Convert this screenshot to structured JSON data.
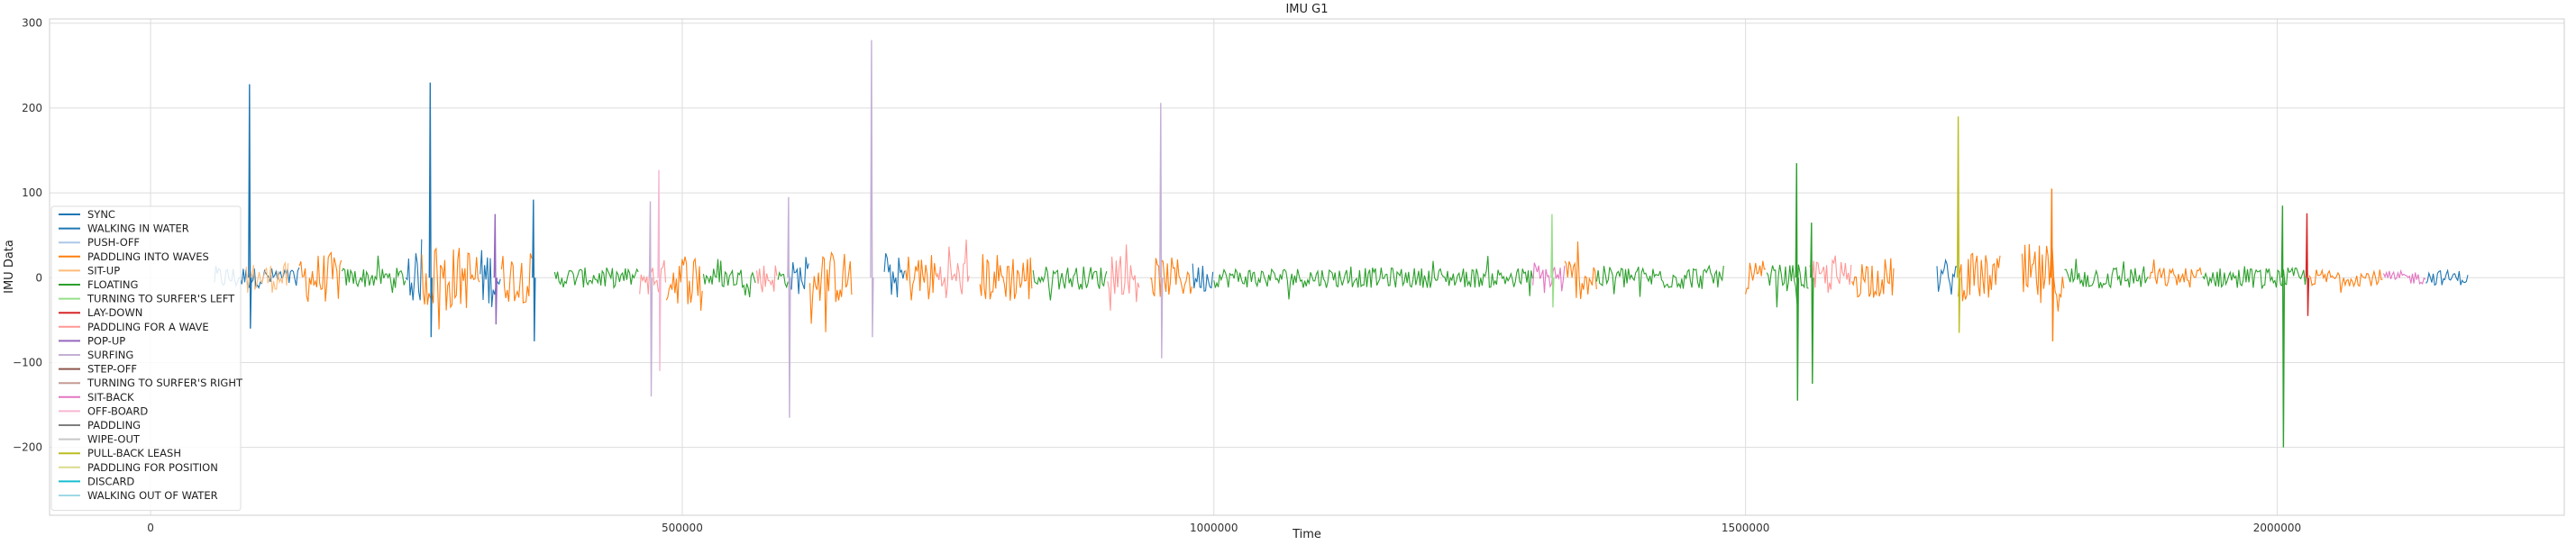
{
  "chart_data": {
    "type": "line",
    "title": "IMU G1",
    "xlabel": "Time",
    "ylabel": "IMU Data",
    "xlim": [
      -95000,
      2270000
    ],
    "ylim": [
      -280,
      305
    ],
    "xticks": [
      0,
      500000,
      1000000,
      1500000,
      2000000
    ],
    "xtick_labels": [
      "0",
      "500000",
      "1000000",
      "1500000",
      "2000000"
    ],
    "yticks": [
      -200,
      -100,
      0,
      100,
      200,
      300
    ],
    "ytick_labels": [
      "−200",
      "−100",
      "0",
      "100",
      "200",
      "300"
    ],
    "grid": true,
    "legend_position": "lower-left",
    "series": [
      {
        "name": "SYNC",
        "color": "#1f77b4"
      },
      {
        "name": "WALKING IN WATER",
        "color": "#1f77b4"
      },
      {
        "name": "PUSH-OFF",
        "color": "#aec7e8"
      },
      {
        "name": "PADDLING INTO WAVES",
        "color": "#ff7f0e"
      },
      {
        "name": "SIT-UP",
        "color": "#ffbb78"
      },
      {
        "name": "FLOATING",
        "color": "#2ca02c"
      },
      {
        "name": "TURNING TO SURFER'S LEFT",
        "color": "#98df8a"
      },
      {
        "name": "LAY-DOWN",
        "color": "#d62728"
      },
      {
        "name": "PADDLING FOR A WAVE",
        "color": "#ff9896"
      },
      {
        "name": "POP-UP",
        "color": "#9467bd"
      },
      {
        "name": "SURFING",
        "color": "#c5b0d5"
      },
      {
        "name": "STEP-OFF",
        "color": "#8c564b"
      },
      {
        "name": "TURNING TO SURFER'S RIGHT",
        "color": "#c49c94"
      },
      {
        "name": "SIT-BACK",
        "color": "#e377c2"
      },
      {
        "name": "OFF-BOARD",
        "color": "#f7b6d2"
      },
      {
        "name": "PADDLING",
        "color": "#7f7f7f"
      },
      {
        "name": "WIPE-OUT",
        "color": "#c7c7c7"
      },
      {
        "name": "PULL-BACK LEASH",
        "color": "#bcbd22"
      },
      {
        "name": "PADDLING FOR POSITION",
        "color": "#dbdb8d"
      },
      {
        "name": "DISCARD",
        "color": "#17becf"
      },
      {
        "name": "WALKING OUT OF WATER",
        "color": "#9edae5"
      }
    ],
    "segments": [
      {
        "series": 0,
        "x": [
          60000,
          95000
        ],
        "amp": 14
      },
      {
        "series": 1,
        "x": [
          95000,
          140000
        ],
        "amp": 12
      },
      {
        "series": 4,
        "x": [
          90000,
          130000
        ],
        "amp": 18
      },
      {
        "series": 3,
        "x": [
          140000,
          180000
        ],
        "amp": 30
      },
      {
        "series": 5,
        "x": [
          180000,
          240000
        ],
        "amp": 12
      },
      {
        "series": 1,
        "x": [
          240000,
          255000
        ],
        "amp": 30
      },
      {
        "series": 3,
        "x": [
          255000,
          310000
        ],
        "amp": 38
      },
      {
        "series": 1,
        "x": [
          310000,
          330000
        ],
        "amp": 35
      },
      {
        "series": 3,
        "x": [
          330000,
          360000
        ],
        "amp": 30
      },
      {
        "series": 5,
        "x": [
          380000,
          460000
        ],
        "amp": 12
      },
      {
        "series": 8,
        "x": [
          460000,
          485000
        ],
        "amp": 22
      },
      {
        "series": 3,
        "x": [
          485000,
          520000
        ],
        "amp": 32
      },
      {
        "series": 5,
        "x": [
          520000,
          570000
        ],
        "amp": 12
      },
      {
        "series": 8,
        "x": [
          570000,
          590000
        ],
        "amp": 18
      },
      {
        "series": 5,
        "x": [
          590000,
          600000
        ],
        "amp": 12
      },
      {
        "series": 1,
        "x": [
          600000,
          620000
        ],
        "amp": 20
      },
      {
        "series": 3,
        "x": [
          620000,
          660000
        ],
        "amp": 32
      },
      {
        "series": 1,
        "x": [
          690000,
          710000
        ],
        "amp": 25
      },
      {
        "series": 3,
        "x": [
          710000,
          740000
        ],
        "amp": 30
      },
      {
        "series": 8,
        "x": [
          740000,
          770000
        ],
        "amp": 24
      },
      {
        "series": 3,
        "x": [
          780000,
          830000
        ],
        "amp": 30
      },
      {
        "series": 5,
        "x": [
          830000,
          900000
        ],
        "amp": 14
      },
      {
        "series": 8,
        "x": [
          900000,
          930000
        ],
        "amp": 20
      },
      {
        "series": 3,
        "x": [
          940000,
          980000
        ],
        "amp": 24
      },
      {
        "series": 1,
        "x": [
          980000,
          1000000
        ],
        "amp": 18
      },
      {
        "series": 5,
        "x": [
          1000000,
          1300000
        ],
        "amp": 12
      },
      {
        "series": 13,
        "x": [
          1300000,
          1330000
        ],
        "amp": 20
      },
      {
        "series": 3,
        "x": [
          1330000,
          1360000
        ],
        "amp": 26
      },
      {
        "series": 5,
        "x": [
          1360000,
          1480000
        ],
        "amp": 14
      },
      {
        "series": 3,
        "x": [
          1500000,
          1520000
        ],
        "amp": 20
      },
      {
        "series": 5,
        "x": [
          1520000,
          1560000
        ],
        "amp": 16
      },
      {
        "series": 8,
        "x": [
          1560000,
          1600000
        ],
        "amp": 20
      },
      {
        "series": 3,
        "x": [
          1600000,
          1640000
        ],
        "amp": 24
      },
      {
        "series": 1,
        "x": [
          1680000,
          1700000
        ],
        "amp": 22
      },
      {
        "series": 3,
        "x": [
          1700000,
          1740000
        ],
        "amp": 28
      },
      {
        "series": 3,
        "x": [
          1760000,
          1800000
        ],
        "amp": 40
      },
      {
        "series": 5,
        "x": [
          1800000,
          1880000
        ],
        "amp": 14
      },
      {
        "series": 3,
        "x": [
          1880000,
          1930000
        ],
        "amp": 12
      },
      {
        "series": 5,
        "x": [
          1930000,
          2030000
        ],
        "amp": 12
      },
      {
        "series": 3,
        "x": [
          2030000,
          2100000
        ],
        "amp": 10
      },
      {
        "series": 13,
        "x": [
          2100000,
          2140000
        ],
        "amp": 8
      },
      {
        "series": 1,
        "x": [
          2140000,
          2180000
        ],
        "amp": 9
      }
    ],
    "spikes": [
      {
        "series": 0,
        "x": 93000,
        "min": -60,
        "max": 228
      },
      {
        "series": 0,
        "x": 263000,
        "min": -70,
        "max": 230
      },
      {
        "series": 9,
        "x": 324000,
        "min": -55,
        "max": 75
      },
      {
        "series": 1,
        "x": 360000,
        "min": -75,
        "max": 92
      },
      {
        "series": 10,
        "x": 470000,
        "min": -140,
        "max": 90
      },
      {
        "series": 14,
        "x": 478000,
        "min": -110,
        "max": 127
      },
      {
        "series": 10,
        "x": 600000,
        "min": -165,
        "max": 95
      },
      {
        "series": 10,
        "x": 678000,
        "min": -70,
        "max": 280
      },
      {
        "series": 10,
        "x": 950000,
        "min": -95,
        "max": 206
      },
      {
        "series": 6,
        "x": 1318000,
        "min": -35,
        "max": 75
      },
      {
        "series": 5,
        "x": 1548000,
        "min": -145,
        "max": 135
      },
      {
        "series": 5,
        "x": 1562000,
        "min": -125,
        "max": 65
      },
      {
        "series": 17,
        "x": 1700000,
        "min": -65,
        "max": 190
      },
      {
        "series": 3,
        "x": 1788000,
        "min": -75,
        "max": 105
      },
      {
        "series": 5,
        "x": 2005000,
        "min": -200,
        "max": 85
      },
      {
        "series": 7,
        "x": 2028000,
        "min": -45,
        "max": 76
      }
    ]
  }
}
